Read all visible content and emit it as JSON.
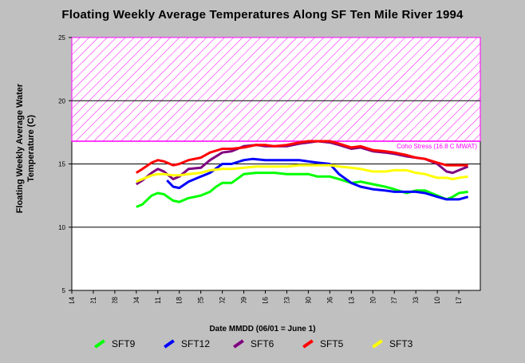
{
  "chart_data": {
    "type": "line",
    "title": "Floating Weekly Average Temperatures Along SF Ten Mile River 1994",
    "xlabel": "Date MMDD (06/01 = June 1)",
    "ylabel": "Floating Weekly Average Water Temperature (C)",
    "ylim": [
      5,
      25
    ],
    "yticks": [
      5,
      10,
      15,
      20,
      25
    ],
    "x_tick_labels": [
      "05/14",
      "05/21",
      "05/28",
      "06/04",
      "06/11",
      "06/18",
      "06/25",
      "07/02",
      "07/09",
      "07/16",
      "07/23",
      "07/30",
      "08/06",
      "08/13",
      "08/20",
      "08/27",
      "09/03",
      "09/10",
      "09/17"
    ],
    "x_tick_days": [
      0,
      7,
      14,
      21,
      28,
      35,
      42,
      49,
      56,
      63,
      70,
      77,
      84,
      91,
      98,
      105,
      112,
      119,
      126
    ],
    "xlim": [
      0,
      133
    ],
    "threshold": {
      "value": 16.8,
      "label": "Coho Stress (16.8 C MWAT)",
      "color": "#ff00ff"
    },
    "hatch_region": {
      "from": 16.8,
      "to": 25,
      "color": "#ff00ff"
    },
    "gridlines": [
      10,
      15,
      20
    ],
    "series": [
      {
        "name": "SFT9",
        "color": "#00ff00",
        "x": [
          21,
          23,
          26,
          28,
          30,
          33,
          35,
          38,
          42,
          45,
          47,
          49,
          52,
          56,
          60,
          63,
          66,
          70,
          74,
          77,
          80,
          84,
          87,
          91,
          94,
          98,
          102,
          105,
          109,
          112,
          115,
          119,
          122,
          124,
          126,
          129
        ],
        "y": [
          11.6,
          11.8,
          12.5,
          12.7,
          12.6,
          12.1,
          12.0,
          12.3,
          12.5,
          12.8,
          13.2,
          13.5,
          13.5,
          14.2,
          14.3,
          14.3,
          14.3,
          14.2,
          14.2,
          14.2,
          14.0,
          14.0,
          13.8,
          13.5,
          13.6,
          13.4,
          13.2,
          13.0,
          12.7,
          12.9,
          12.9,
          12.5,
          12.2,
          12.4,
          12.7,
          12.8
        ]
      },
      {
        "name": "SFT12",
        "color": "#0000ff",
        "x": [
          31,
          33,
          35,
          38,
          42,
          45,
          49,
          52,
          56,
          59,
          63,
          66,
          70,
          74,
          77,
          80,
          84,
          87,
          91,
          94,
          98,
          102,
          105,
          109,
          112,
          115,
          119,
          122,
          124,
          126,
          129
        ],
        "y": [
          13.7,
          13.2,
          13.1,
          13.6,
          14.0,
          14.3,
          15.0,
          15.0,
          15.3,
          15.4,
          15.3,
          15.3,
          15.3,
          15.3,
          15.2,
          15.1,
          15.0,
          14.2,
          13.5,
          13.2,
          13.0,
          12.9,
          12.8,
          12.8,
          12.8,
          12.7,
          12.4,
          12.2,
          12.2,
          12.2,
          12.4
        ]
      },
      {
        "name": "SFT6",
        "color": "#800080",
        "x": [
          21,
          23,
          26,
          28,
          30,
          33,
          35,
          38,
          42,
          45,
          49,
          52,
          56,
          60,
          63,
          66,
          70,
          74,
          77,
          80,
          84,
          87,
          91,
          94,
          98,
          102,
          105,
          109,
          112,
          115,
          119,
          122,
          124,
          126,
          129
        ],
        "y": [
          13.4,
          13.7,
          14.3,
          14.6,
          14.4,
          13.8,
          14.0,
          14.6,
          14.7,
          15.3,
          15.9,
          16.0,
          16.4,
          16.5,
          16.4,
          16.4,
          16.4,
          16.6,
          16.7,
          16.8,
          16.7,
          16.5,
          16.2,
          16.3,
          16.0,
          15.9,
          15.8,
          15.6,
          15.5,
          15.4,
          15.0,
          14.4,
          14.3,
          14.5,
          14.8
        ]
      },
      {
        "name": "SFT5",
        "color": "#ff0000",
        "x": [
          21,
          23,
          26,
          28,
          30,
          33,
          35,
          38,
          42,
          45,
          49,
          52,
          56,
          60,
          63,
          66,
          70,
          74,
          77,
          80,
          84,
          87,
          91,
          94,
          98,
          102,
          105,
          109,
          112,
          115,
          119,
          122,
          124,
          126,
          129
        ],
        "y": [
          14.3,
          14.6,
          15.1,
          15.3,
          15.2,
          14.9,
          15.0,
          15.3,
          15.5,
          15.9,
          16.2,
          16.2,
          16.3,
          16.5,
          16.5,
          16.4,
          16.5,
          16.7,
          16.8,
          16.8,
          16.8,
          16.6,
          16.3,
          16.4,
          16.1,
          16.0,
          15.9,
          15.7,
          15.5,
          15.4,
          15.1,
          14.9,
          14.9,
          14.9,
          14.9
        ]
      },
      {
        "name": "SFT3",
        "color": "#ffff00",
        "x": [
          21,
          23,
          26,
          28,
          30,
          33,
          35,
          38,
          42,
          45,
          49,
          52,
          56,
          60,
          63,
          66,
          70,
          74,
          77,
          80,
          84,
          87,
          91,
          94,
          98,
          102,
          105,
          109,
          112,
          115,
          119,
          122,
          124,
          126,
          129
        ],
        "y": [
          13.6,
          13.8,
          14.1,
          14.2,
          14.2,
          14.1,
          14.1,
          14.2,
          14.3,
          14.5,
          14.6,
          14.6,
          14.7,
          14.8,
          14.8,
          14.8,
          14.8,
          14.9,
          14.9,
          14.9,
          14.9,
          14.8,
          14.7,
          14.6,
          14.4,
          14.4,
          14.5,
          14.5,
          14.3,
          14.2,
          13.9,
          13.9,
          13.8,
          13.9,
          14.0
        ]
      }
    ]
  }
}
